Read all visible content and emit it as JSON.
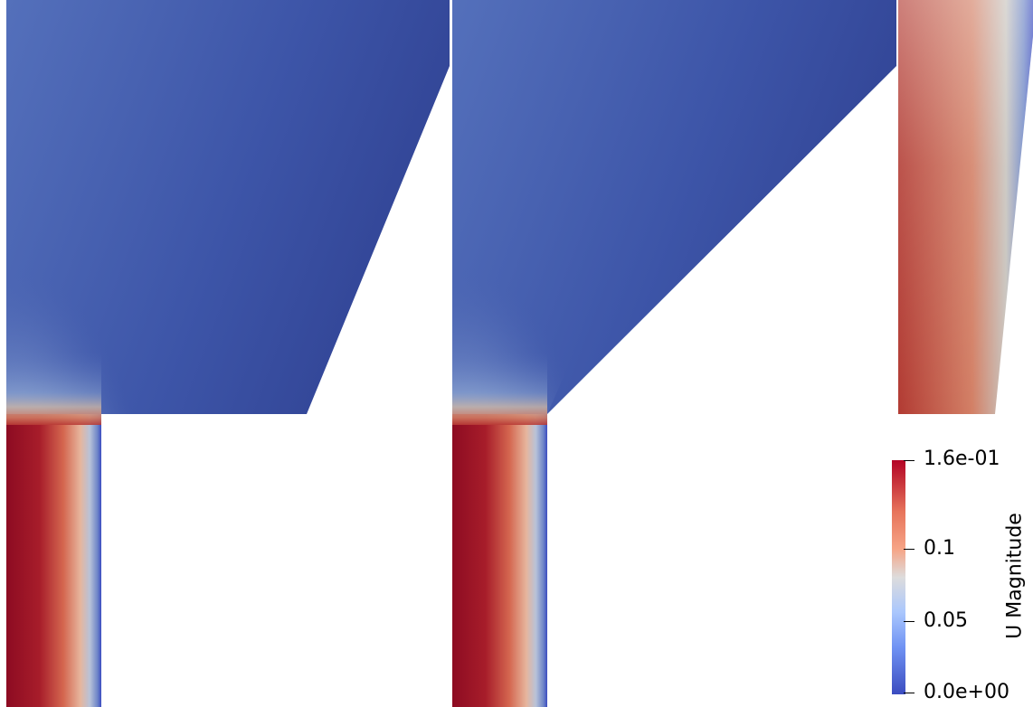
{
  "colorbar": {
    "title": "U Magnitude",
    "ticks": {
      "max": "1.6e-01",
      "mid_high": "0.1",
      "mid_low": "0.05",
      "min": "0.0e+00"
    },
    "colormap": [
      "#3b4cc0",
      "#6f92f3",
      "#aac7fd",
      "#dddcdc",
      "#f6a486",
      "#e7745b",
      "#c9363c",
      "#b40426"
    ]
  },
  "views": [
    "left-domain",
    "middle-domain",
    "right-domain"
  ]
}
